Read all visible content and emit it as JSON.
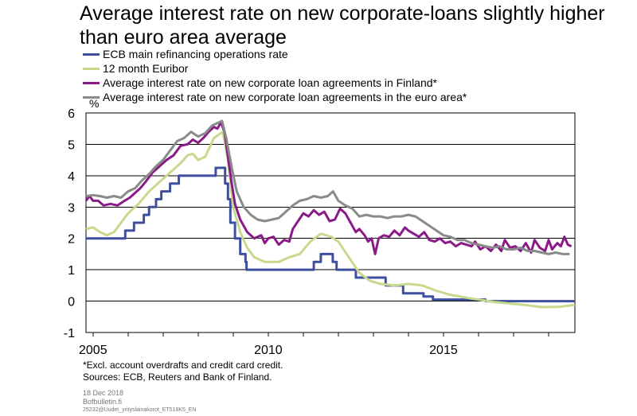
{
  "chart_data": {
    "type": "line",
    "title": "Average interest rate on new corporate-loans slightly higher than euro area average",
    "unit_label": "%",
    "xlim": [
      2004.8,
      2018.75
    ],
    "ylim": [
      -1,
      6
    ],
    "y_ticks": [
      -1,
      0,
      1,
      2,
      3,
      4,
      5,
      6
    ],
    "x_ticks": [
      {
        "value": 2005,
        "label": "2005"
      },
      {
        "value": 2010,
        "label": "2010"
      },
      {
        "value": 2015,
        "label": "2015"
      }
    ],
    "grid": "horizontal",
    "legend_position": "top-left",
    "series": [
      {
        "name": "ECB main refinancing operations rate",
        "color": "#3f4f9f",
        "step": true,
        "points": [
          [
            2004.8,
            2.0
          ],
          [
            2005.92,
            2.25
          ],
          [
            2006.17,
            2.5
          ],
          [
            2006.45,
            2.75
          ],
          [
            2006.6,
            3.0
          ],
          [
            2006.8,
            3.25
          ],
          [
            2006.95,
            3.5
          ],
          [
            2007.2,
            3.75
          ],
          [
            2007.45,
            4.0
          ],
          [
            2008.5,
            4.25
          ],
          [
            2008.77,
            3.75
          ],
          [
            2008.85,
            3.25
          ],
          [
            2008.92,
            2.5
          ],
          [
            2009.05,
            2.0
          ],
          [
            2009.2,
            1.5
          ],
          [
            2009.35,
            1.25
          ],
          [
            2009.38,
            1.0
          ],
          [
            2011.3,
            1.25
          ],
          [
            2011.5,
            1.5
          ],
          [
            2011.84,
            1.25
          ],
          [
            2011.95,
            1.0
          ],
          [
            2012.5,
            0.75
          ],
          [
            2013.35,
            0.5
          ],
          [
            2013.85,
            0.25
          ],
          [
            2014.43,
            0.15
          ],
          [
            2014.7,
            0.05
          ],
          [
            2016.2,
            0.0
          ],
          [
            2018.75,
            0.0
          ]
        ]
      },
      {
        "name": "12 month Euribor",
        "color": "#c6d98d",
        "step": false,
        "points": [
          [
            2004.8,
            2.3
          ],
          [
            2005.0,
            2.35
          ],
          [
            2005.2,
            2.2
          ],
          [
            2005.4,
            2.1
          ],
          [
            2005.6,
            2.2
          ],
          [
            2005.8,
            2.5
          ],
          [
            2006.0,
            2.8
          ],
          [
            2006.3,
            3.1
          ],
          [
            2006.6,
            3.5
          ],
          [
            2006.9,
            3.8
          ],
          [
            2007.2,
            4.1
          ],
          [
            2007.5,
            4.4
          ],
          [
            2007.7,
            4.65
          ],
          [
            2007.85,
            4.7
          ],
          [
            2008.0,
            4.5
          ],
          [
            2008.2,
            4.6
          ],
          [
            2008.45,
            5.2
          ],
          [
            2008.7,
            5.4
          ],
          [
            2008.85,
            4.5
          ],
          [
            2009.0,
            3.0
          ],
          [
            2009.2,
            2.2
          ],
          [
            2009.4,
            1.7
          ],
          [
            2009.6,
            1.4
          ],
          [
            2009.9,
            1.25
          ],
          [
            2010.3,
            1.25
          ],
          [
            2010.6,
            1.4
          ],
          [
            2010.9,
            1.5
          ],
          [
            2011.2,
            1.9
          ],
          [
            2011.5,
            2.15
          ],
          [
            2011.8,
            2.05
          ],
          [
            2012.0,
            1.9
          ],
          [
            2012.3,
            1.4
          ],
          [
            2012.6,
            0.9
          ],
          [
            2012.9,
            0.65
          ],
          [
            2013.2,
            0.55
          ],
          [
            2013.6,
            0.5
          ],
          [
            2014.0,
            0.55
          ],
          [
            2014.4,
            0.5
          ],
          [
            2014.8,
            0.33
          ],
          [
            2015.2,
            0.2
          ],
          [
            2015.7,
            0.1
          ],
          [
            2016.0,
            0.05
          ],
          [
            2016.4,
            -0.02
          ],
          [
            2016.8,
            -0.07
          ],
          [
            2017.3,
            -0.12
          ],
          [
            2017.8,
            -0.19
          ],
          [
            2018.3,
            -0.18
          ],
          [
            2018.75,
            -0.12
          ]
        ]
      },
      {
        "name": "Average interest rate on new corporate loan agreements in Finland*",
        "color": "#8b1a89",
        "step": false,
        "points": [
          [
            2004.8,
            3.2
          ],
          [
            2004.9,
            3.35
          ],
          [
            2005.0,
            3.2
          ],
          [
            2005.15,
            3.2
          ],
          [
            2005.3,
            3.05
          ],
          [
            2005.5,
            3.1
          ],
          [
            2005.7,
            3.05
          ],
          [
            2005.9,
            3.2
          ],
          [
            2006.05,
            3.3
          ],
          [
            2006.2,
            3.45
          ],
          [
            2006.35,
            3.6
          ],
          [
            2006.5,
            3.8
          ],
          [
            2006.7,
            4.1
          ],
          [
            2006.9,
            4.3
          ],
          [
            2007.1,
            4.5
          ],
          [
            2007.3,
            4.65
          ],
          [
            2007.5,
            4.95
          ],
          [
            2007.7,
            5.0
          ],
          [
            2007.85,
            5.15
          ],
          [
            2008.0,
            5.05
          ],
          [
            2008.15,
            5.2
          ],
          [
            2008.3,
            5.4
          ],
          [
            2008.45,
            5.55
          ],
          [
            2008.55,
            5.5
          ],
          [
            2008.65,
            5.7
          ],
          [
            2008.75,
            5.4
          ],
          [
            2008.85,
            4.6
          ],
          [
            2008.95,
            3.8
          ],
          [
            2009.05,
            3.1
          ],
          [
            2009.2,
            2.6
          ],
          [
            2009.4,
            2.2
          ],
          [
            2009.6,
            2.0
          ],
          [
            2009.8,
            2.1
          ],
          [
            2009.9,
            1.85
          ],
          [
            2010.0,
            2.0
          ],
          [
            2010.15,
            2.05
          ],
          [
            2010.3,
            1.8
          ],
          [
            2010.45,
            1.95
          ],
          [
            2010.6,
            1.9
          ],
          [
            2010.7,
            2.3
          ],
          [
            2010.85,
            2.55
          ],
          [
            2011.0,
            2.8
          ],
          [
            2011.15,
            2.7
          ],
          [
            2011.3,
            2.9
          ],
          [
            2011.45,
            2.75
          ],
          [
            2011.6,
            2.85
          ],
          [
            2011.75,
            2.55
          ],
          [
            2011.9,
            2.6
          ],
          [
            2012.05,
            2.95
          ],
          [
            2012.2,
            2.8
          ],
          [
            2012.35,
            2.5
          ],
          [
            2012.5,
            2.2
          ],
          [
            2012.6,
            2.3
          ],
          [
            2012.75,
            2.1
          ],
          [
            2012.85,
            1.9
          ],
          [
            2012.95,
            2.0
          ],
          [
            2013.05,
            1.5
          ],
          [
            2013.15,
            2.0
          ],
          [
            2013.3,
            2.1
          ],
          [
            2013.45,
            2.05
          ],
          [
            2013.6,
            2.25
          ],
          [
            2013.75,
            2.1
          ],
          [
            2013.9,
            2.35
          ],
          [
            2014.0,
            2.25
          ],
          [
            2014.15,
            2.15
          ],
          [
            2014.3,
            2.05
          ],
          [
            2014.45,
            2.2
          ],
          [
            2014.6,
            1.95
          ],
          [
            2014.75,
            1.9
          ],
          [
            2014.9,
            2.0
          ],
          [
            2015.05,
            1.85
          ],
          [
            2015.2,
            1.9
          ],
          [
            2015.35,
            1.75
          ],
          [
            2015.5,
            1.85
          ],
          [
            2015.65,
            1.8
          ],
          [
            2015.8,
            1.75
          ],
          [
            2015.9,
            1.9
          ],
          [
            2016.05,
            1.65
          ],
          [
            2016.2,
            1.75
          ],
          [
            2016.35,
            1.6
          ],
          [
            2016.5,
            1.8
          ],
          [
            2016.65,
            1.6
          ],
          [
            2016.75,
            1.95
          ],
          [
            2016.9,
            1.7
          ],
          [
            2017.05,
            1.75
          ],
          [
            2017.2,
            1.6
          ],
          [
            2017.35,
            1.85
          ],
          [
            2017.5,
            1.55
          ],
          [
            2017.6,
            1.95
          ],
          [
            2017.75,
            1.7
          ],
          [
            2017.9,
            1.6
          ],
          [
            2018.0,
            1.95
          ],
          [
            2018.1,
            1.65
          ],
          [
            2018.25,
            1.85
          ],
          [
            2018.35,
            1.75
          ],
          [
            2018.45,
            2.05
          ],
          [
            2018.55,
            1.8
          ],
          [
            2018.65,
            1.75
          ]
        ]
      },
      {
        "name": "Average interest rate on new corporate loan agreements in the euro area*",
        "color": "#8a8a8a",
        "step": false,
        "points": [
          [
            2004.8,
            3.35
          ],
          [
            2005.0,
            3.38
          ],
          [
            2005.2,
            3.35
          ],
          [
            2005.4,
            3.3
          ],
          [
            2005.6,
            3.35
          ],
          [
            2005.8,
            3.3
          ],
          [
            2006.0,
            3.5
          ],
          [
            2006.2,
            3.6
          ],
          [
            2006.4,
            3.85
          ],
          [
            2006.6,
            4.05
          ],
          [
            2006.8,
            4.3
          ],
          [
            2007.0,
            4.5
          ],
          [
            2007.2,
            4.8
          ],
          [
            2007.4,
            5.1
          ],
          [
            2007.6,
            5.2
          ],
          [
            2007.8,
            5.4
          ],
          [
            2008.0,
            5.25
          ],
          [
            2008.2,
            5.35
          ],
          [
            2008.4,
            5.6
          ],
          [
            2008.6,
            5.7
          ],
          [
            2008.68,
            5.75
          ],
          [
            2008.8,
            5.2
          ],
          [
            2008.95,
            4.3
          ],
          [
            2009.1,
            3.5
          ],
          [
            2009.3,
            3.0
          ],
          [
            2009.5,
            2.75
          ],
          [
            2009.7,
            2.6
          ],
          [
            2009.9,
            2.55
          ],
          [
            2010.1,
            2.6
          ],
          [
            2010.3,
            2.65
          ],
          [
            2010.5,
            2.85
          ],
          [
            2010.7,
            3.05
          ],
          [
            2010.9,
            3.2
          ],
          [
            2011.1,
            3.25
          ],
          [
            2011.3,
            3.35
          ],
          [
            2011.5,
            3.3
          ],
          [
            2011.7,
            3.35
          ],
          [
            2011.85,
            3.5
          ],
          [
            2012.0,
            3.2
          ],
          [
            2012.2,
            3.05
          ],
          [
            2012.4,
            2.95
          ],
          [
            2012.6,
            2.7
          ],
          [
            2012.8,
            2.75
          ],
          [
            2013.0,
            2.7
          ],
          [
            2013.2,
            2.7
          ],
          [
            2013.4,
            2.65
          ],
          [
            2013.6,
            2.7
          ],
          [
            2013.8,
            2.7
          ],
          [
            2014.0,
            2.75
          ],
          [
            2014.2,
            2.7
          ],
          [
            2014.4,
            2.55
          ],
          [
            2014.6,
            2.4
          ],
          [
            2014.8,
            2.25
          ],
          [
            2015.0,
            2.1
          ],
          [
            2015.2,
            2.05
          ],
          [
            2015.4,
            1.95
          ],
          [
            2015.6,
            1.95
          ],
          [
            2015.8,
            1.85
          ],
          [
            2016.0,
            1.8
          ],
          [
            2016.2,
            1.75
          ],
          [
            2016.4,
            1.7
          ],
          [
            2016.6,
            1.75
          ],
          [
            2016.8,
            1.65
          ],
          [
            2017.0,
            1.65
          ],
          [
            2017.2,
            1.7
          ],
          [
            2017.4,
            1.6
          ],
          [
            2017.6,
            1.6
          ],
          [
            2017.8,
            1.55
          ],
          [
            2018.0,
            1.5
          ],
          [
            2018.2,
            1.55
          ],
          [
            2018.4,
            1.5
          ],
          [
            2018.6,
            1.5
          ]
        ]
      }
    ]
  },
  "footnotes": {
    "note": "*Excl. account overdrafts and credit card credit.",
    "sources": "Sources: ECB, Reuters and Bank of Finland."
  },
  "meta": {
    "date": "18 Dec 2018",
    "site": "Bofbulletin.fi",
    "code": "25232@Uudet_yrityslainakorot_ET518K5_EN"
  }
}
